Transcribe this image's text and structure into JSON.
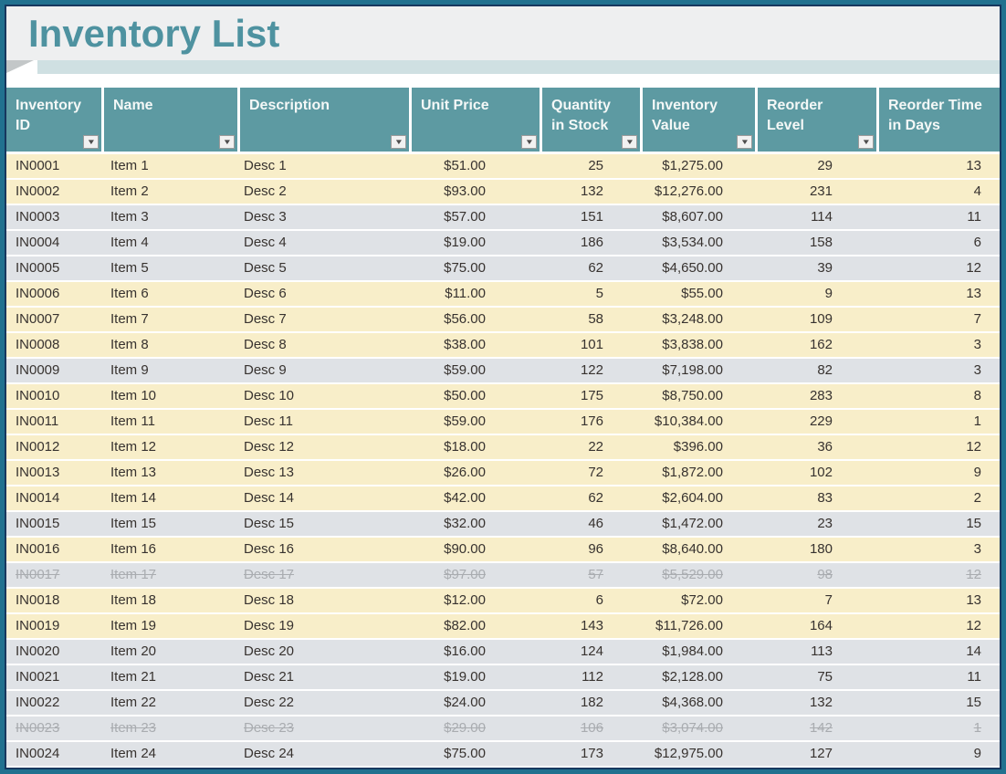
{
  "title": "Inventory List",
  "colors": {
    "outer_border_teal": "#21718F",
    "inner_border_navy": "#17375E",
    "header_teal": "#5D9AA2",
    "header_text": "#F4F8F7",
    "row_highlight_cream": "#F8EEC9",
    "row_normal_gray": "#DFE2E6",
    "row_text": "#37322F",
    "discontinued_text": "#A9ACB0",
    "title_text": "#4E92A0",
    "title_background": "#EEEFF0",
    "ribbon_band": "#CFE0E2"
  },
  "filter_icon": "▼",
  "columns": [
    {
      "key": "inventory_id",
      "label": "Inventory ID"
    },
    {
      "key": "name",
      "label": "Name"
    },
    {
      "key": "description",
      "label": "Description"
    },
    {
      "key": "unit_price",
      "label": "Unit Price"
    },
    {
      "key": "quantity_in_stock",
      "label": "Quantity in Stock"
    },
    {
      "key": "inventory_value",
      "label": "Inventory Value"
    },
    {
      "key": "reorder_level",
      "label": "Reorder Level"
    },
    {
      "key": "reorder_time_in_days",
      "label": "Reorder Time in Days"
    }
  ],
  "rows": [
    {
      "inventory_id": "IN0001",
      "name": "Item 1",
      "description": "Desc 1",
      "unit_price": "$51.00",
      "quantity_in_stock": "25",
      "inventory_value": "$1,275.00",
      "reorder_level": "29",
      "reorder_time_in_days": "13",
      "highlight": true,
      "discontinued": false
    },
    {
      "inventory_id": "IN0002",
      "name": "Item 2",
      "description": "Desc 2",
      "unit_price": "$93.00",
      "quantity_in_stock": "132",
      "inventory_value": "$12,276.00",
      "reorder_level": "231",
      "reorder_time_in_days": "4",
      "highlight": true,
      "discontinued": false
    },
    {
      "inventory_id": "IN0003",
      "name": "Item 3",
      "description": "Desc 3",
      "unit_price": "$57.00",
      "quantity_in_stock": "151",
      "inventory_value": "$8,607.00",
      "reorder_level": "114",
      "reorder_time_in_days": "11",
      "highlight": false,
      "discontinued": false
    },
    {
      "inventory_id": "IN0004",
      "name": "Item 4",
      "description": "Desc 4",
      "unit_price": "$19.00",
      "quantity_in_stock": "186",
      "inventory_value": "$3,534.00",
      "reorder_level": "158",
      "reorder_time_in_days": "6",
      "highlight": false,
      "discontinued": false
    },
    {
      "inventory_id": "IN0005",
      "name": "Item 5",
      "description": "Desc 5",
      "unit_price": "$75.00",
      "quantity_in_stock": "62",
      "inventory_value": "$4,650.00",
      "reorder_level": "39",
      "reorder_time_in_days": "12",
      "highlight": false,
      "discontinued": false
    },
    {
      "inventory_id": "IN0006",
      "name": "Item 6",
      "description": "Desc 6",
      "unit_price": "$11.00",
      "quantity_in_stock": "5",
      "inventory_value": "$55.00",
      "reorder_level": "9",
      "reorder_time_in_days": "13",
      "highlight": true,
      "discontinued": false
    },
    {
      "inventory_id": "IN0007",
      "name": "Item 7",
      "description": "Desc 7",
      "unit_price": "$56.00",
      "quantity_in_stock": "58",
      "inventory_value": "$3,248.00",
      "reorder_level": "109",
      "reorder_time_in_days": "7",
      "highlight": true,
      "discontinued": false
    },
    {
      "inventory_id": "IN0008",
      "name": "Item 8",
      "description": "Desc 8",
      "unit_price": "$38.00",
      "quantity_in_stock": "101",
      "inventory_value": "$3,838.00",
      "reorder_level": "162",
      "reorder_time_in_days": "3",
      "highlight": true,
      "discontinued": false
    },
    {
      "inventory_id": "IN0009",
      "name": "Item 9",
      "description": "Desc 9",
      "unit_price": "$59.00",
      "quantity_in_stock": "122",
      "inventory_value": "$7,198.00",
      "reorder_level": "82",
      "reorder_time_in_days": "3",
      "highlight": false,
      "discontinued": false
    },
    {
      "inventory_id": "IN0010",
      "name": "Item 10",
      "description": "Desc 10",
      "unit_price": "$50.00",
      "quantity_in_stock": "175",
      "inventory_value": "$8,750.00",
      "reorder_level": "283",
      "reorder_time_in_days": "8",
      "highlight": true,
      "discontinued": false
    },
    {
      "inventory_id": "IN0011",
      "name": "Item 11",
      "description": "Desc 11",
      "unit_price": "$59.00",
      "quantity_in_stock": "176",
      "inventory_value": "$10,384.00",
      "reorder_level": "229",
      "reorder_time_in_days": "1",
      "highlight": true,
      "discontinued": false
    },
    {
      "inventory_id": "IN0012",
      "name": "Item 12",
      "description": "Desc 12",
      "unit_price": "$18.00",
      "quantity_in_stock": "22",
      "inventory_value": "$396.00",
      "reorder_level": "36",
      "reorder_time_in_days": "12",
      "highlight": true,
      "discontinued": false
    },
    {
      "inventory_id": "IN0013",
      "name": "Item 13",
      "description": "Desc 13",
      "unit_price": "$26.00",
      "quantity_in_stock": "72",
      "inventory_value": "$1,872.00",
      "reorder_level": "102",
      "reorder_time_in_days": "9",
      "highlight": true,
      "discontinued": false
    },
    {
      "inventory_id": "IN0014",
      "name": "Item 14",
      "description": "Desc 14",
      "unit_price": "$42.00",
      "quantity_in_stock": "62",
      "inventory_value": "$2,604.00",
      "reorder_level": "83",
      "reorder_time_in_days": "2",
      "highlight": true,
      "discontinued": false
    },
    {
      "inventory_id": "IN0015",
      "name": "Item 15",
      "description": "Desc 15",
      "unit_price": "$32.00",
      "quantity_in_stock": "46",
      "inventory_value": "$1,472.00",
      "reorder_level": "23",
      "reorder_time_in_days": "15",
      "highlight": false,
      "discontinued": false
    },
    {
      "inventory_id": "IN0016",
      "name": "Item 16",
      "description": "Desc 16",
      "unit_price": "$90.00",
      "quantity_in_stock": "96",
      "inventory_value": "$8,640.00",
      "reorder_level": "180",
      "reorder_time_in_days": "3",
      "highlight": true,
      "discontinued": false
    },
    {
      "inventory_id": "IN0017",
      "name": "Item 17",
      "description": "Desc 17",
      "unit_price": "$97.00",
      "quantity_in_stock": "57",
      "inventory_value": "$5,529.00",
      "reorder_level": "98",
      "reorder_time_in_days": "12",
      "highlight": false,
      "discontinued": true
    },
    {
      "inventory_id": "IN0018",
      "name": "Item 18",
      "description": "Desc 18",
      "unit_price": "$12.00",
      "quantity_in_stock": "6",
      "inventory_value": "$72.00",
      "reorder_level": "7",
      "reorder_time_in_days": "13",
      "highlight": true,
      "discontinued": false
    },
    {
      "inventory_id": "IN0019",
      "name": "Item 19",
      "description": "Desc 19",
      "unit_price": "$82.00",
      "quantity_in_stock": "143",
      "inventory_value": "$11,726.00",
      "reorder_level": "164",
      "reorder_time_in_days": "12",
      "highlight": true,
      "discontinued": false
    },
    {
      "inventory_id": "IN0020",
      "name": "Item 20",
      "description": "Desc 20",
      "unit_price": "$16.00",
      "quantity_in_stock": "124",
      "inventory_value": "$1,984.00",
      "reorder_level": "113",
      "reorder_time_in_days": "14",
      "highlight": false,
      "discontinued": false
    },
    {
      "inventory_id": "IN0021",
      "name": "Item 21",
      "description": "Desc 21",
      "unit_price": "$19.00",
      "quantity_in_stock": "112",
      "inventory_value": "$2,128.00",
      "reorder_level": "75",
      "reorder_time_in_days": "11",
      "highlight": false,
      "discontinued": false
    },
    {
      "inventory_id": "IN0022",
      "name": "Item 22",
      "description": "Desc 22",
      "unit_price": "$24.00",
      "quantity_in_stock": "182",
      "inventory_value": "$4,368.00",
      "reorder_level": "132",
      "reorder_time_in_days": "15",
      "highlight": false,
      "discontinued": false
    },
    {
      "inventory_id": "IN0023",
      "name": "Item 23",
      "description": "Desc 23",
      "unit_price": "$29.00",
      "quantity_in_stock": "106",
      "inventory_value": "$3,074.00",
      "reorder_level": "142",
      "reorder_time_in_days": "1",
      "highlight": false,
      "discontinued": true
    },
    {
      "inventory_id": "IN0024",
      "name": "Item 24",
      "description": "Desc 24",
      "unit_price": "$75.00",
      "quantity_in_stock": "173",
      "inventory_value": "$12,975.00",
      "reorder_level": "127",
      "reorder_time_in_days": "9",
      "highlight": false,
      "discontinued": false
    }
  ]
}
